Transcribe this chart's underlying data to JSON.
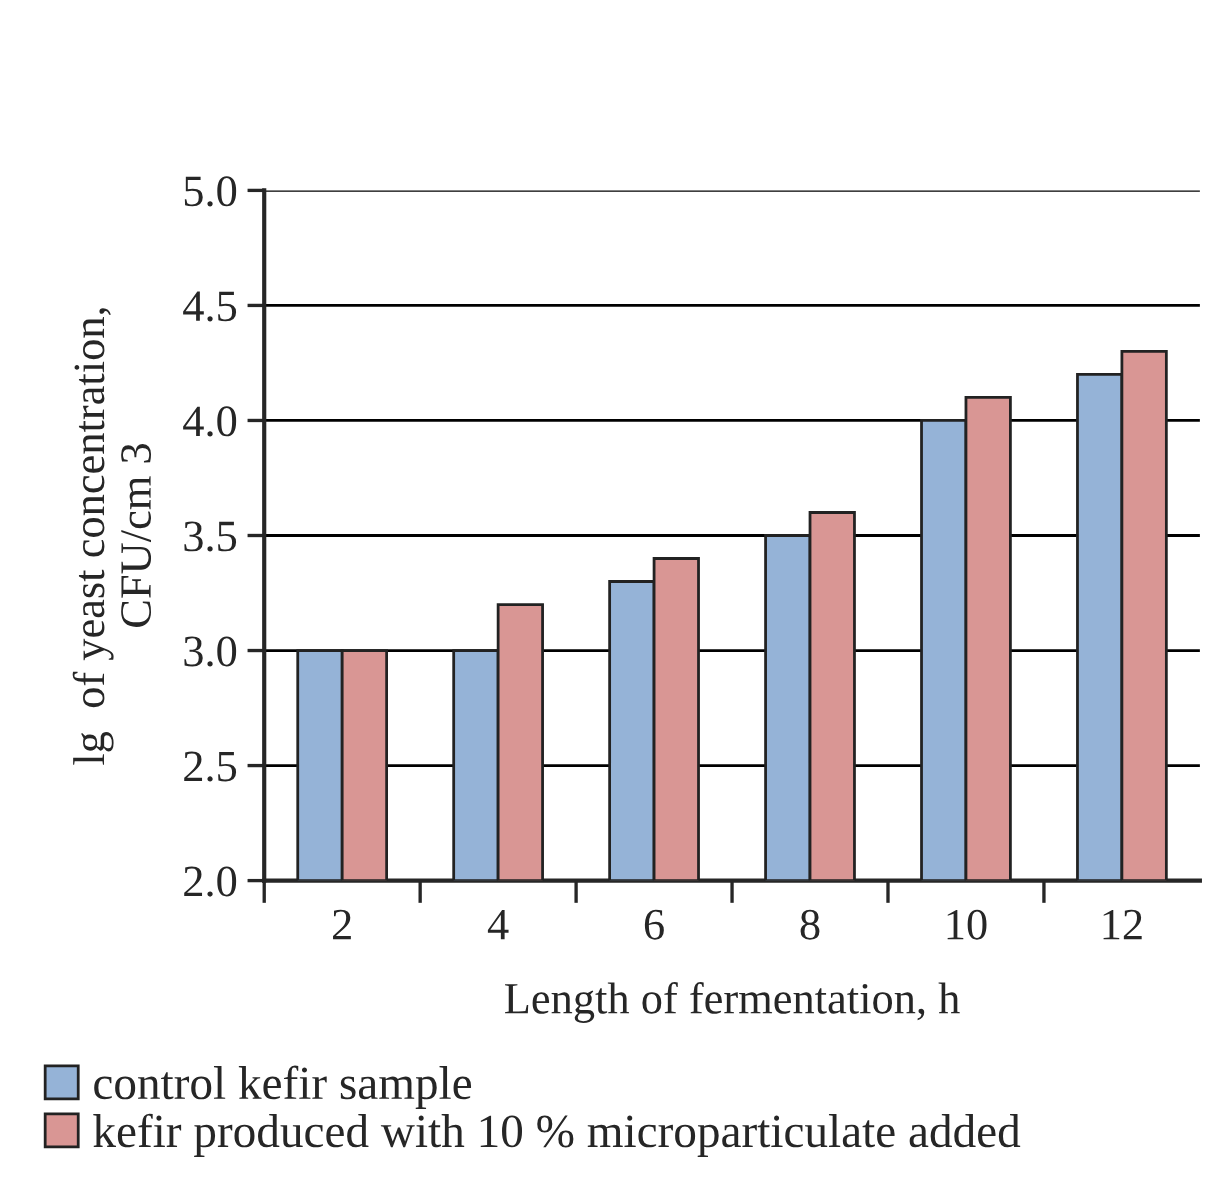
{
  "chart_data": {
    "type": "bar",
    "xlabel": "Length of fermentation, h",
    "ylabel": "lg  of yeast concentration,\nCFU/cm 3",
    "categories": [
      "2",
      "4",
      "6",
      "8",
      "10",
      "12"
    ],
    "series": [
      {
        "name": "control kefir sample",
        "color": "#95b3d7",
        "values": [
          3.0,
          3.0,
          3.3,
          3.5,
          4.0,
          4.2
        ]
      },
      {
        "name": "kefir produced with 10 % microparticulate added",
        "color": "#d99694",
        "values": [
          3.0,
          3.2,
          3.4,
          3.6,
          4.1,
          4.3
        ]
      }
    ],
    "ylim": [
      2.0,
      5.0
    ],
    "yticks": [
      {
        "value": 2.0,
        "label": "2.0"
      },
      {
        "value": 2.5,
        "label": "2.5"
      },
      {
        "value": 3.0,
        "label": "3.0"
      },
      {
        "value": 3.5,
        "label": "3.5"
      },
      {
        "value": 4.0,
        "label": "4.0"
      },
      {
        "value": 4.5,
        "label": "4.5"
      },
      {
        "value": 5.0,
        "label": "5.0"
      }
    ],
    "grid": "y",
    "legend": "bottom"
  }
}
